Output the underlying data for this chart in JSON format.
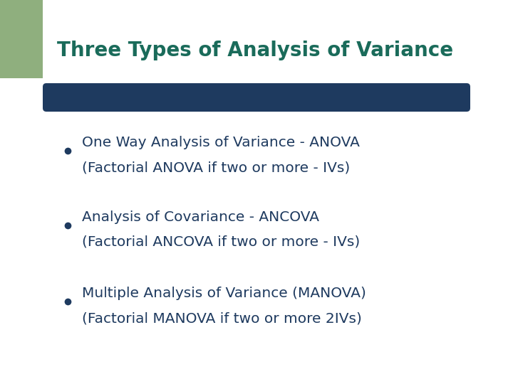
{
  "title": "Three Types of Analysis of Variance",
  "title_color": "#1a6b5a",
  "title_fontsize": 20,
  "background_color": "#ffffff",
  "left_bar_color": "#8faf7e",
  "divider_color": "#1e3a5f",
  "bullet_color": "#1e3a5f",
  "bullet_text_color": "#1e3a5f",
  "bullet_fontsize": 14.5,
  "bullets": [
    [
      "One Way Analysis of Variance - ANOVA",
      "(Factorial ANOVA if two or more - IVs)"
    ],
    [
      "Analysis of Covariance - ANCOVA",
      "(Factorial ANCOVA if two or more - IVs)"
    ],
    [
      "Multiple Analysis of Variance (MANOVA)",
      "(Factorial MANOVA if two or more 2IVs)"
    ]
  ]
}
